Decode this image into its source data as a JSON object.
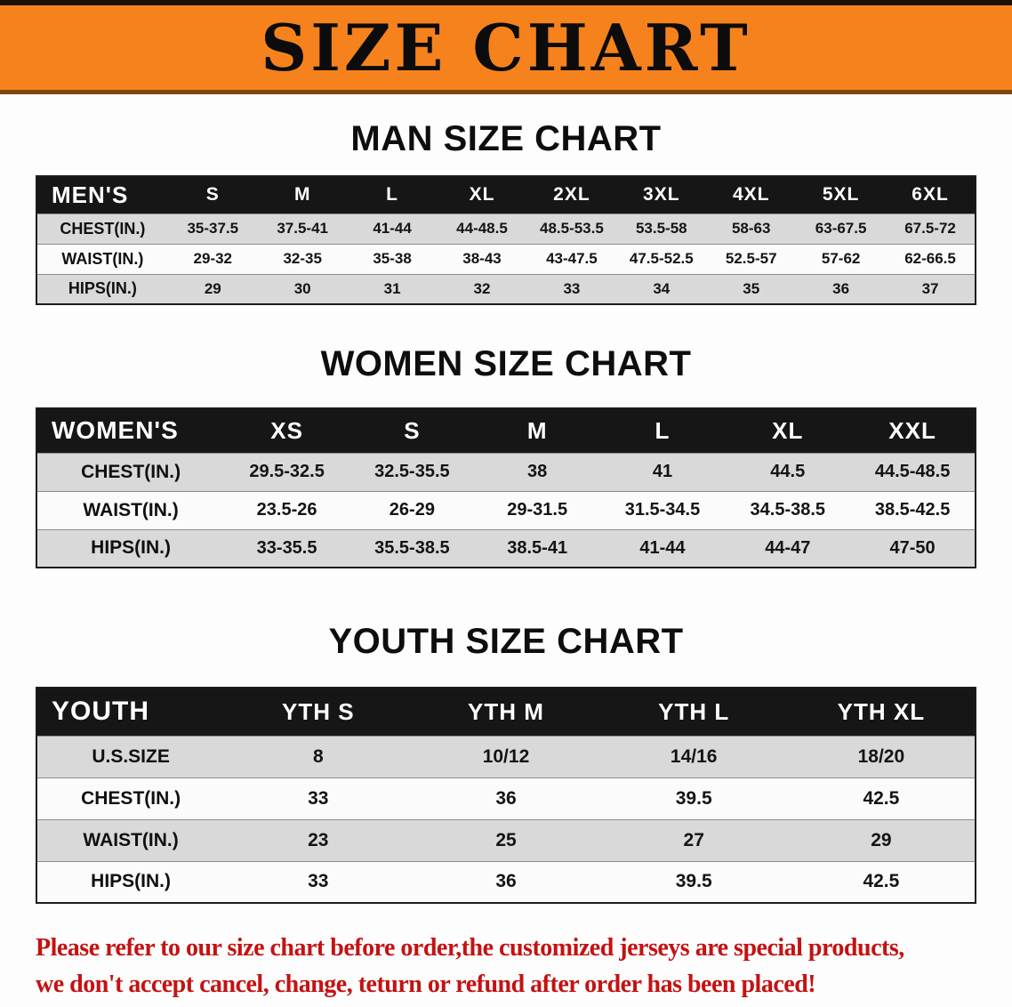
{
  "colors": {
    "banner_orange": "#F5821D",
    "header_black": "#161616",
    "stripe_gray": "#D9D9D9",
    "notice_red": "#C41212"
  },
  "banner": {
    "title": "SIZE CHART"
  },
  "sections": [
    {
      "id": "men",
      "heading": "MAN SIZE CHART",
      "table": {
        "label": "MEN'S",
        "columns": [
          "S",
          "M",
          "L",
          "XL",
          "2XL",
          "3XL",
          "4XL",
          "5XL",
          "6XL"
        ],
        "rows": [
          {
            "label": "CHEST(IN.)",
            "values": [
              "35-37.5",
              "37.5-41",
              "41-44",
              "44-48.5",
              "48.5-53.5",
              "53.5-58",
              "58-63",
              "63-67.5",
              "67.5-72"
            ]
          },
          {
            "label": "WAIST(IN.)",
            "values": [
              "29-32",
              "32-35",
              "35-38",
              "38-43",
              "43-47.5",
              "47.5-52.5",
              "52.5-57",
              "57-62",
              "62-66.5"
            ]
          },
          {
            "label": "HIPS(IN.)",
            "values": [
              "29",
              "30",
              "31",
              "32",
              "33",
              "34",
              "35",
              "36",
              "37"
            ]
          }
        ]
      }
    },
    {
      "id": "women",
      "heading": "WOMEN SIZE CHART",
      "table": {
        "label": "WOMEN'S",
        "columns": [
          "XS",
          "S",
          "M",
          "L",
          "XL",
          "XXL"
        ],
        "rows": [
          {
            "label": "CHEST(IN.)",
            "values": [
              "29.5-32.5",
              "32.5-35.5",
              "38",
              "41",
              "44.5",
              "44.5-48.5"
            ]
          },
          {
            "label": "WAIST(IN.)",
            "values": [
              "23.5-26",
              "26-29",
              "29-31.5",
              "31.5-34.5",
              "34.5-38.5",
              "38.5-42.5"
            ]
          },
          {
            "label": "HIPS(IN.)",
            "values": [
              "33-35.5",
              "35.5-38.5",
              "38.5-41",
              "41-44",
              "44-47",
              "47-50"
            ]
          }
        ]
      }
    },
    {
      "id": "youth",
      "heading": "YOUTH SIZE CHART",
      "table": {
        "label": "YOUTH",
        "columns": [
          "YTH S",
          "YTH M",
          "YTH L",
          "YTH XL"
        ],
        "rows": [
          {
            "label": "U.S.SIZE",
            "values": [
              "8",
              "10/12",
              "14/16",
              "18/20"
            ]
          },
          {
            "label": "CHEST(IN.)",
            "values": [
              "33",
              "36",
              "39.5",
              "42.5"
            ]
          },
          {
            "label": "WAIST(IN.)",
            "values": [
              "23",
              "25",
              "27",
              "29"
            ]
          },
          {
            "label": "HIPS(IN.)",
            "values": [
              "33",
              "36",
              "39.5",
              "42.5"
            ]
          }
        ]
      }
    }
  ],
  "footer": {
    "line1": "Please refer to our size chart before order,the customized jerseys are special products,",
    "line2": "we don't accept cancel, change, teturn or refund after order has been placed!"
  }
}
